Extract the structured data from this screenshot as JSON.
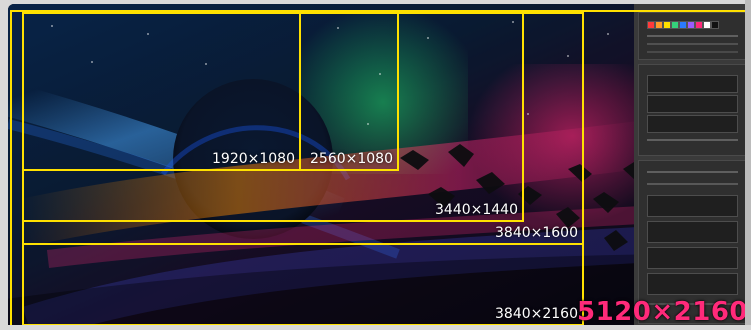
{
  "resolutions": {
    "r1920": "1920×1080",
    "r2560": "2560×1080",
    "r3440": "3440×1440",
    "r3840_1600": "3840×1600",
    "r3840_2160": "3840×2160",
    "r5120": "5120×2160"
  },
  "colors": {
    "outline": "#ffe100",
    "label": "#ffffff",
    "highlight": "#ff2a7a"
  }
}
